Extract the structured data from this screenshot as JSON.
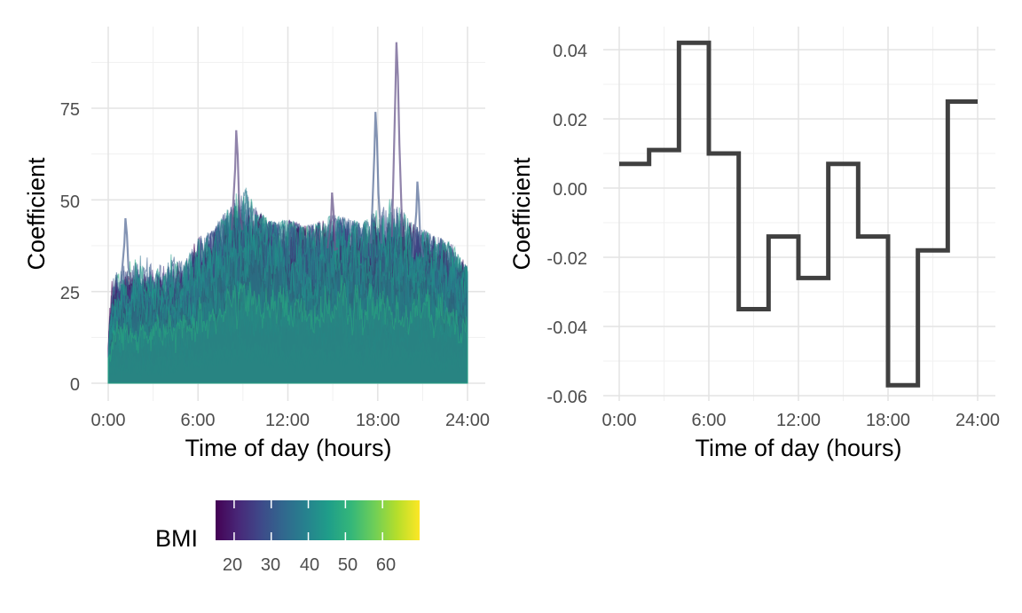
{
  "chart_data": [
    {
      "type": "line",
      "panel": "left",
      "xlabel": "Time of day (hours)",
      "ylabel": "Coefficient",
      "xlim": [
        0,
        24
      ],
      "ylim": [
        -3,
        95
      ],
      "x_ticks": [
        0,
        6,
        12,
        18,
        24
      ],
      "x_tick_labels": [
        "0:00",
        "6:00",
        "12:00",
        "18:00",
        "24:00"
      ],
      "y_ticks": [
        0,
        25,
        50,
        75
      ],
      "y_tick_labels": [
        "0",
        "25",
        "50",
        "75"
      ],
      "grid": true,
      "description_series": "many semi-transparent per-subject time series colored by BMI",
      "envelope": {
        "x": [
          0,
          1,
          2,
          3,
          4,
          5,
          6,
          7,
          8,
          9,
          10,
          11,
          12,
          13,
          14,
          15,
          16,
          17,
          18,
          19,
          20,
          21,
          22,
          23,
          24
        ],
        "upper": [
          30,
          33,
          38,
          34,
          36,
          33,
          40,
          42,
          48,
          55,
          47,
          44,
          45,
          43,
          44,
          46,
          45,
          44,
          48,
          52,
          45,
          42,
          40,
          38,
          32
        ],
        "typical": [
          18,
          20,
          21,
          20,
          20,
          22,
          26,
          30,
          32,
          33,
          32,
          31,
          30,
          30,
          30,
          31,
          31,
          30,
          30,
          31,
          30,
          29,
          27,
          25,
          22
        ]
      },
      "peaks": [
        {
          "x": 8.6,
          "y": 69
        },
        {
          "x": 17.9,
          "y": 74
        },
        {
          "x": 19.3,
          "y": 93
        },
        {
          "x": 1.2,
          "y": 45
        },
        {
          "x": 15.0,
          "y": 52
        },
        {
          "x": 20.7,
          "y": 55
        }
      ]
    },
    {
      "type": "line",
      "panel": "right",
      "step": true,
      "xlabel": "Time of day (hours)",
      "ylabel": "Coefficient",
      "xlim": [
        0,
        24
      ],
      "ylim": [
        -0.06,
        0.044
      ],
      "x_ticks": [
        0,
        6,
        12,
        18,
        24
      ],
      "x_tick_labels": [
        "0:00",
        "6:00",
        "12:00",
        "18:00",
        "24:00"
      ],
      "y_ticks": [
        -0.06,
        -0.04,
        -0.02,
        0.0,
        0.02,
        0.04
      ],
      "y_tick_labels": [
        "-0.06",
        "-0.04",
        "-0.02",
        "0.00",
        "0.02",
        "0.04"
      ],
      "grid": true,
      "color": "#404040",
      "series": [
        {
          "x": [
            0,
            2,
            4,
            6,
            8,
            10,
            12,
            14,
            16,
            18,
            20,
            22,
            24
          ],
          "values": [
            0.007,
            0.011,
            0.042,
            0.01,
            -0.035,
            -0.014,
            -0.026,
            0.007,
            -0.014,
            -0.057,
            -0.018,
            0.025,
            0.025
          ]
        }
      ]
    }
  ],
  "legend": {
    "title": "BMI",
    "placement": "bottom-left",
    "colormap": "viridis",
    "range": [
      15,
      70
    ],
    "ticks": [
      20,
      30,
      40,
      50,
      60
    ],
    "tick_labels": [
      "20",
      "30",
      "40",
      "50",
      "60"
    ],
    "colors": [
      "#440154",
      "#482878",
      "#3e4989",
      "#31688e",
      "#26828e",
      "#1f9e89",
      "#35b779",
      "#6ece58",
      "#b5de2b",
      "#fde725"
    ]
  }
}
